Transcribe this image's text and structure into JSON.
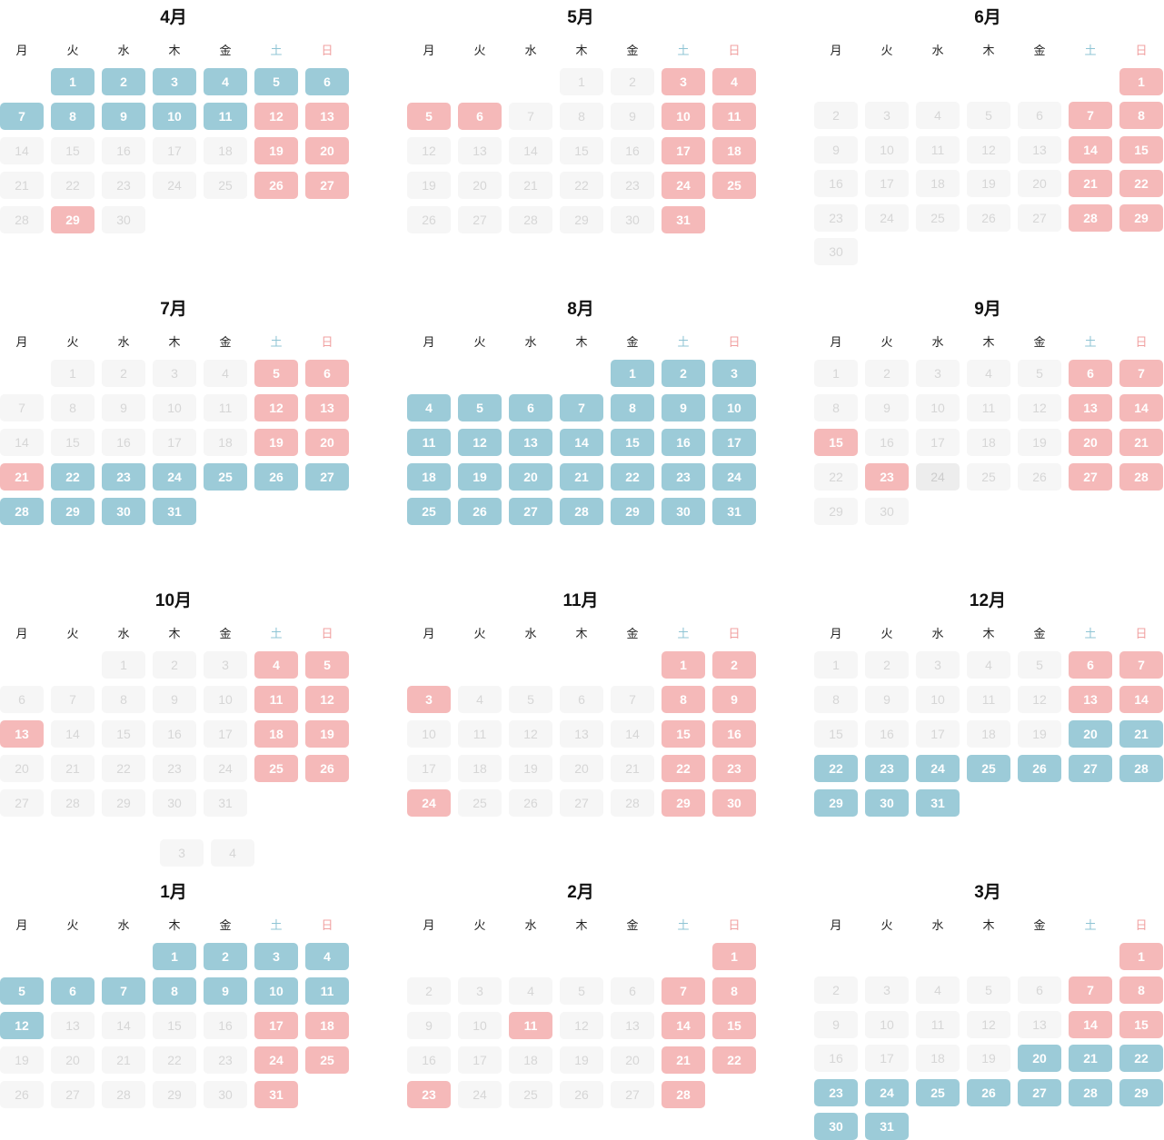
{
  "weekdays": [
    "月",
    "火",
    "水",
    "木",
    "金",
    "土",
    "日"
  ],
  "colors": {
    "blue": "#9ccbd8",
    "pink": "#f5b9b9",
    "off": "#f6f6f6",
    "sat_header": "#8fc4d4",
    "sun_header": "#f0a0a0"
  },
  "months": [
    {
      "title": "4月",
      "weeks": [
        [
          "",
          "1b",
          "2b",
          "3b",
          "4b",
          "5b",
          "6b"
        ],
        [
          "7b",
          "8b",
          "9b",
          "10b",
          "11b",
          "12p",
          "13p"
        ],
        [
          "14",
          "15",
          "16",
          "17",
          "18",
          "19p",
          "20p"
        ],
        [
          "21",
          "22",
          "23",
          "24",
          "25",
          "26p",
          "27p"
        ],
        [
          "28",
          "29p",
          "30"
        ]
      ]
    },
    {
      "title": "5月",
      "weeks": [
        [
          "",
          "",
          "",
          "1",
          "2",
          "3p",
          "4p"
        ],
        [
          "5p",
          "6p",
          "7",
          "8",
          "9",
          "10p",
          "11p"
        ],
        [
          "12",
          "13",
          "14",
          "15",
          "16",
          "17p",
          "18p"
        ],
        [
          "19",
          "20",
          "21",
          "22",
          "23",
          "24p",
          "25p"
        ],
        [
          "26",
          "27",
          "28",
          "29",
          "30",
          "31p"
        ]
      ]
    },
    {
      "title": "6月",
      "weeks": [
        [
          "",
          "",
          "",
          "",
          "",
          "",
          "1p"
        ],
        [
          "2",
          "3",
          "4",
          "5",
          "6",
          "7p",
          "8p"
        ],
        [
          "9",
          "10",
          "11",
          "12",
          "13",
          "14p",
          "15p"
        ],
        [
          "16",
          "17",
          "18",
          "19",
          "20",
          "21p",
          "22p"
        ],
        [
          "23",
          "24",
          "25",
          "26",
          "27",
          "28p",
          "29p"
        ],
        [
          "30"
        ]
      ]
    },
    {
      "title": "7月",
      "weeks": [
        [
          "",
          "1",
          "2",
          "3",
          "4",
          "5p",
          "6p"
        ],
        [
          "7",
          "8",
          "9",
          "10",
          "11",
          "12p",
          "13p"
        ],
        [
          "14",
          "15",
          "16",
          "17",
          "18",
          "19p",
          "20p"
        ],
        [
          "21p",
          "22b",
          "23b",
          "24b",
          "25b",
          "26b",
          "27b"
        ],
        [
          "28b",
          "29b",
          "30b",
          "31b"
        ]
      ]
    },
    {
      "title": "8月",
      "weeks": [
        [
          "",
          "",
          "",
          "",
          "1b",
          "2b",
          "3b"
        ],
        [
          "4b",
          "5b",
          "6b",
          "7b",
          "8b",
          "9b",
          "10b"
        ],
        [
          "11b",
          "12b",
          "13b",
          "14b",
          "15b",
          "16b",
          "17b"
        ],
        [
          "18b",
          "19b",
          "20b",
          "21b",
          "22b",
          "23b",
          "24b"
        ],
        [
          "25b",
          "26b",
          "27b",
          "28b",
          "29b",
          "30b",
          "31b"
        ]
      ]
    },
    {
      "title": "9月",
      "weeks": [
        [
          "1",
          "2",
          "3",
          "4",
          "5",
          "6p",
          "7p"
        ],
        [
          "8",
          "9",
          "10",
          "11",
          "12",
          "13p",
          "14p"
        ],
        [
          "15p",
          "16",
          "17",
          "18",
          "19",
          "20p",
          "21p"
        ],
        [
          "22",
          "23p",
          "24m",
          "25",
          "26",
          "27p",
          "28p"
        ],
        [
          "29",
          "30"
        ]
      ]
    },
    {
      "title": "10月",
      "weeks": [
        [
          "",
          "",
          "1",
          "2",
          "3",
          "4p",
          "5p"
        ],
        [
          "6",
          "7",
          "8",
          "9",
          "10",
          "11p",
          "12p"
        ],
        [
          "13p",
          "14",
          "15",
          "16",
          "17",
          "18p",
          "19p"
        ],
        [
          "20",
          "21",
          "22",
          "23",
          "24",
          "25p",
          "26p"
        ],
        [
          "27",
          "28",
          "29",
          "30",
          "31"
        ]
      ]
    },
    {
      "title": "11月",
      "weeks": [
        [
          "",
          "",
          "",
          "",
          "",
          "1p",
          "2p"
        ],
        [
          "3p",
          "4",
          "5",
          "6",
          "7",
          "8p",
          "9p"
        ],
        [
          "10",
          "11",
          "12",
          "13",
          "14",
          "15p",
          "16p"
        ],
        [
          "17",
          "18",
          "19",
          "20",
          "21",
          "22p",
          "23p"
        ],
        [
          "24p",
          "25",
          "26",
          "27",
          "28",
          "29p",
          "30p"
        ]
      ]
    },
    {
      "title": "12月",
      "weeks": [
        [
          "1",
          "2",
          "3",
          "4",
          "5",
          "6p",
          "7p"
        ],
        [
          "8",
          "9",
          "10",
          "11",
          "12",
          "13p",
          "14p"
        ],
        [
          "15",
          "16",
          "17",
          "18",
          "19",
          "20b",
          "21b"
        ],
        [
          "22b",
          "23b",
          "24b",
          "25b",
          "26b",
          "27b",
          "28b"
        ],
        [
          "29b",
          "30b",
          "31b"
        ]
      ]
    },
    {
      "title": "1月",
      "weeks": [
        [
          "",
          "",
          "",
          "1b",
          "2b",
          "3b",
          "4b"
        ],
        [
          "5b",
          "6b",
          "7b",
          "8b",
          "9b",
          "10b",
          "11b"
        ],
        [
          "12b",
          "13",
          "14",
          "15",
          "16",
          "17p",
          "18p"
        ],
        [
          "19",
          "20",
          "21",
          "22",
          "23",
          "24p",
          "25p"
        ],
        [
          "26",
          "27",
          "28",
          "29",
          "30",
          "31p"
        ]
      ]
    },
    {
      "title": "2月",
      "weeks": [
        [
          "",
          "",
          "",
          "",
          "",
          "",
          "1p"
        ],
        [
          "2",
          "3",
          "4",
          "5",
          "6",
          "7p",
          "8p"
        ],
        [
          "9",
          "10",
          "11p",
          "12",
          "13",
          "14p",
          "15p"
        ],
        [
          "16",
          "17",
          "18",
          "19",
          "20",
          "21p",
          "22p"
        ],
        [
          "23p",
          "24",
          "25",
          "26",
          "27",
          "28p"
        ]
      ]
    },
    {
      "title": "3月",
      "weeks": [
        [
          "",
          "",
          "",
          "",
          "",
          "",
          "1p"
        ],
        [
          "2",
          "3",
          "4",
          "5",
          "6",
          "7p",
          "8p"
        ],
        [
          "9",
          "10",
          "11",
          "12",
          "13",
          "14p",
          "15p"
        ],
        [
          "16",
          "17",
          "18",
          "19",
          "20b",
          "21b",
          "22b"
        ],
        [
          "23b",
          "24b",
          "25b",
          "26b",
          "27b",
          "28b",
          "29b"
        ],
        [
          "30b",
          "31b"
        ]
      ]
    }
  ],
  "extra_cells": [
    "3",
    "4"
  ]
}
